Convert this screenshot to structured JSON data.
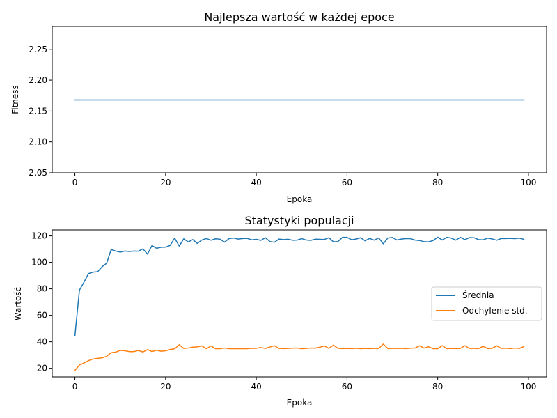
{
  "charts": [
    {
      "title": "Najlepsza wartość w każdej epoce",
      "xlabel": "Epoka",
      "ylabel": "Fitness"
    },
    {
      "title": "Statystyki populacji",
      "xlabel": "Epoka",
      "ylabel": "Wartość",
      "legend": [
        "Średnia",
        "Odchylenie std."
      ]
    }
  ],
  "colors": {
    "series1": "#1f77b4",
    "series2": "#ff7f0e"
  },
  "chart_data": [
    {
      "type": "line",
      "title": "Najlepsza wartość w każdej epoce",
      "xlabel": "Epoka",
      "ylabel": "Fitness",
      "xlim": [
        -5,
        104
      ],
      "ylim": [
        2.05,
        2.287
      ],
      "xticks": [
        0,
        20,
        40,
        60,
        80,
        100
      ],
      "yticks": [
        2.05,
        2.1,
        2.15,
        2.2,
        2.25
      ],
      "ytick_labels": [
        "2.05",
        "2.10",
        "2.15",
        "2.20",
        "2.25"
      ],
      "grid": false,
      "series": [
        {
          "color": "#1f77b4",
          "x": [
            0,
            99
          ],
          "y": [
            2.168,
            2.168
          ]
        }
      ]
    },
    {
      "type": "line",
      "title": "Statystyki populacji",
      "xlabel": "Epoka",
      "ylabel": "Wartość",
      "xlim": [
        -5,
        104
      ],
      "ylim": [
        13.5,
        124.5
      ],
      "xticks": [
        0,
        20,
        40,
        60,
        80,
        100
      ],
      "yticks": [
        20,
        40,
        60,
        80,
        100,
        120
      ],
      "grid": false,
      "legend_position": "center-right",
      "series": [
        {
          "name": "Średnia",
          "color": "#1f77b4",
          "y": [
            44.4,
            79.0,
            85.0,
            91.5,
            92.6,
            92.9,
            96.7,
            99.3,
            109.7,
            108.5,
            107.7,
            108.5,
            108.2,
            108.5,
            108.4,
            110.2,
            106.2,
            112.7,
            110.6,
            111.4,
            111.5,
            112.8,
            118.3,
            112.3,
            117.8,
            115.4,
            117.2,
            114.3,
            116.9,
            118.0,
            116.7,
            117.8,
            117.5,
            115.3,
            118.0,
            118.4,
            117.6,
            118.0,
            118.1,
            117.0,
            117.4,
            116.6,
            118.6,
            115.7,
            115.2,
            117.6,
            117.2,
            117.5,
            116.7,
            116.8,
            117.9,
            116.9,
            116.6,
            117.5,
            117.4,
            117.3,
            118.6,
            115.5,
            115.7,
            118.9,
            118.9,
            117.1,
            117.6,
            118.6,
            116.3,
            118.1,
            116.8,
            118.4,
            114.0,
            118.4,
            118.8,
            116.9,
            117.6,
            118.0,
            117.9,
            116.8,
            116.5,
            115.6,
            115.5,
            116.5,
            119.0,
            116.9,
            118.9,
            118.3,
            116.8,
            118.9,
            117.2,
            118.7,
            118.6,
            117.2,
            117.0,
            118.3,
            117.7,
            116.7,
            118.0,
            118.0,
            118.1,
            117.9,
            118.3,
            117.4
          ]
        },
        {
          "name": "Odchylenie std.",
          "color": "#ff7f0e",
          "y": [
            18.3,
            22.5,
            24.0,
            25.8,
            27.0,
            27.5,
            27.9,
            29.0,
            31.8,
            32.2,
            33.5,
            33.3,
            32.6,
            32.6,
            33.5,
            32.3,
            34.1,
            32.6,
            33.7,
            32.9,
            33.2,
            34.2,
            34.7,
            37.8,
            35.0,
            35.3,
            36.0,
            36.2,
            36.9,
            34.8,
            36.9,
            34.8,
            34.8,
            35.3,
            34.8,
            34.8,
            34.9,
            34.8,
            34.8,
            35.1,
            35.1,
            35.7,
            35.0,
            36.1,
            37.0,
            35.0,
            34.9,
            35.0,
            35.2,
            35.3,
            34.8,
            35.0,
            35.3,
            35.2,
            35.9,
            36.9,
            35.0,
            37.5,
            35.1,
            34.9,
            35.0,
            34.9,
            35.1,
            34.8,
            35.0,
            34.9,
            35.0,
            35.0,
            38.3,
            34.9,
            35.1,
            35.0,
            35.1,
            34.9,
            35.2,
            35.3,
            37.0,
            35.3,
            36.3,
            34.8,
            34.8,
            37.1,
            34.9,
            35.0,
            34.9,
            35.0,
            37.1,
            35.0,
            35.1,
            34.9,
            36.6,
            34.9,
            35.1,
            37.0,
            35.0,
            35.2,
            34.9,
            35.3,
            35.0,
            36.4
          ]
        }
      ]
    }
  ]
}
